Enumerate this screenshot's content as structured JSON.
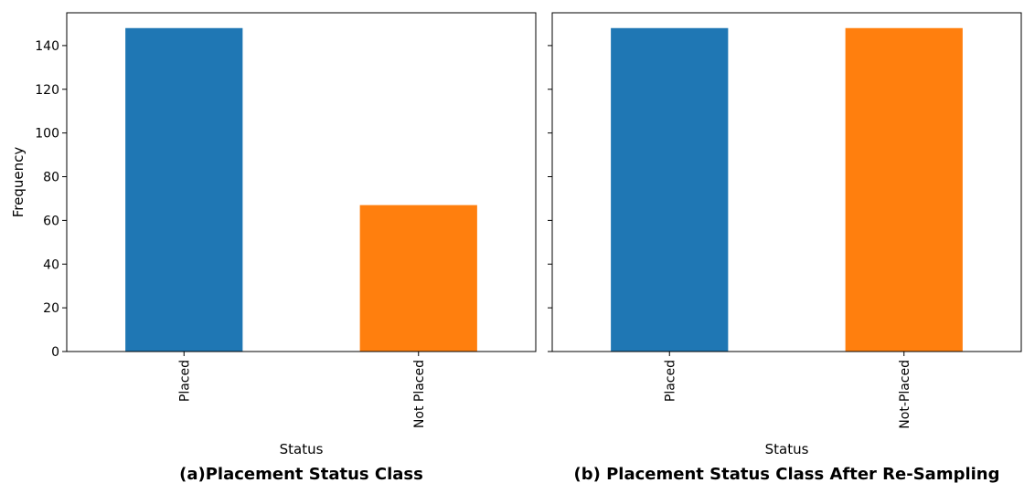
{
  "chart_data": [
    {
      "type": "bar",
      "categories": [
        "Placed",
        "Not Placed"
      ],
      "values": [
        148,
        67
      ],
      "colors": [
        "#1f77b4",
        "#ff7f0e"
      ],
      "xlabel": "Status",
      "ylabel": "Frequency",
      "ylim": [
        0,
        155
      ],
      "yticks": [
        0,
        20,
        40,
        60,
        80,
        100,
        120,
        140
      ],
      "caption": "(a)Placement Status Class",
      "grid": false
    },
    {
      "type": "bar",
      "categories": [
        "Placed",
        "Not-Placed"
      ],
      "values": [
        148,
        148
      ],
      "colors": [
        "#1f77b4",
        "#ff7f0e"
      ],
      "xlabel": "Status",
      "ylabel": "",
      "ylim": [
        0,
        155
      ],
      "yticks": [
        0,
        20,
        40,
        60,
        80,
        100,
        120,
        140
      ],
      "shared_y": true,
      "caption": "(b) Placement Status Class After Re-Sampling",
      "grid": false
    }
  ]
}
